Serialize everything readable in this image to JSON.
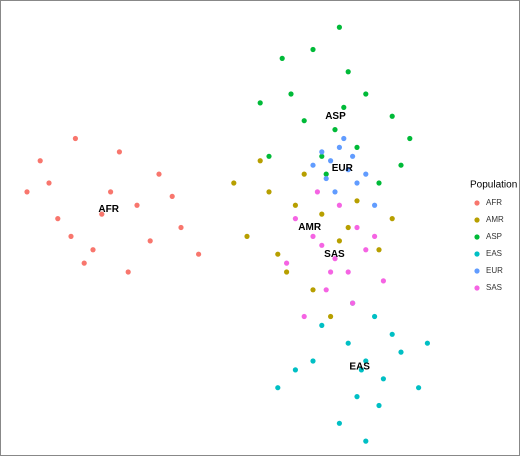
{
  "chart_data": {
    "type": "scatter",
    "legend_title": "Population",
    "legend": "right",
    "xlim": [
      0,
      100
    ],
    "ylim": [
      0,
      100
    ],
    "series": [
      {
        "name": "AFR",
        "color": "#F8766D",
        "x": [
          22,
          10,
          15,
          30,
          35,
          5,
          18,
          26,
          40,
          12,
          20,
          28,
          8,
          33,
          24,
          44,
          16,
          38
        ],
        "y": [
          53,
          60,
          48,
          55,
          62,
          58,
          42,
          67,
          50,
          52,
          45,
          40,
          65,
          47,
          58,
          44,
          70,
          57
        ]
      },
      {
        "name": "AMR",
        "color": "#B79F00",
        "x": [
          72,
          60,
          55,
          68,
          78,
          85,
          70,
          64,
          52,
          74,
          80,
          66,
          58,
          76,
          88,
          62
        ],
        "y": [
          53,
          58,
          48,
          62,
          50,
          45,
          36,
          40,
          60,
          30,
          56,
          55,
          65,
          47,
          52,
          44
        ]
      },
      {
        "name": "ASP",
        "color": "#00BA38",
        "x": [
          75,
          65,
          80,
          88,
          70,
          60,
          78,
          92,
          73,
          68,
          85,
          58,
          76,
          82,
          72,
          63,
          90,
          77
        ],
        "y": [
          72,
          80,
          68,
          75,
          90,
          66,
          85,
          70,
          62,
          74,
          60,
          78,
          95,
          80,
          66,
          88,
          64,
          77
        ]
      },
      {
        "name": "EAS",
        "color": "#00BFC4",
        "x": [
          82,
          78,
          86,
          72,
          90,
          80,
          84,
          66,
          94,
          76,
          88,
          82,
          70,
          85,
          79,
          62,
          96,
          81
        ],
        "y": [
          20,
          24,
          16,
          28,
          22,
          12,
          30,
          18,
          14,
          6,
          26,
          2,
          20,
          10,
          33,
          14,
          24,
          18
        ]
      },
      {
        "name": "EUR",
        "color": "#619CFF",
        "x": [
          74,
          78,
          72,
          80,
          76,
          70,
          82,
          75,
          77,
          73,
          79,
          84
        ],
        "y": [
          65,
          63,
          67,
          60,
          68,
          64,
          62,
          58,
          70,
          61,
          66,
          55
        ]
      },
      {
        "name": "SAS",
        "color": "#F564E3",
        "x": [
          75,
          70,
          78,
          66,
          82,
          73,
          68,
          80,
          76,
          64,
          86,
          72,
          79,
          71,
          84,
          74
        ],
        "y": [
          43,
          48,
          40,
          52,
          45,
          36,
          30,
          50,
          55,
          42,
          38,
          46,
          33,
          58,
          48,
          40
        ]
      }
    ]
  }
}
